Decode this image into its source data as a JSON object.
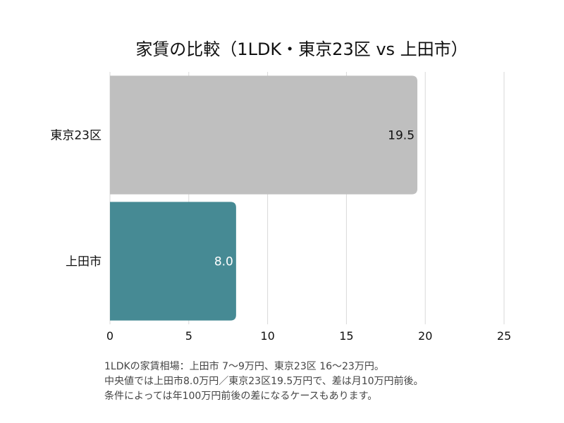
{
  "chart_data": {
    "type": "bar",
    "orientation": "horizontal",
    "title": "家賃の比較（1LDK・東京23区 vs 上田市）",
    "categories": [
      "東京23区",
      "上田市"
    ],
    "values": [
      19.5,
      8.0
    ],
    "value_labels": [
      "19.5",
      "8.0"
    ],
    "colors": [
      "#bfbfbf",
      "#468a94"
    ],
    "value_label_colors": [
      "#111111",
      "#ffffff"
    ],
    "xlim": [
      0,
      25
    ],
    "xticks": [
      0,
      5,
      10,
      15,
      20,
      25
    ],
    "xtick_labels": [
      "0",
      "5",
      "10",
      "15",
      "20",
      "25"
    ],
    "xlabel": "",
    "ylabel": "",
    "grid": "vertical",
    "gridline_color": "#d9d9d9"
  },
  "notes": [
    "1LDKの家賃相場：上田市 7〜9万円、東京23区 16〜23万円。",
    "中央値では上田市8.0万円／東京23区19.5万円で、差は月10万円前後。",
    "条件によっては年100万円前後の差になるケースもあります。"
  ]
}
